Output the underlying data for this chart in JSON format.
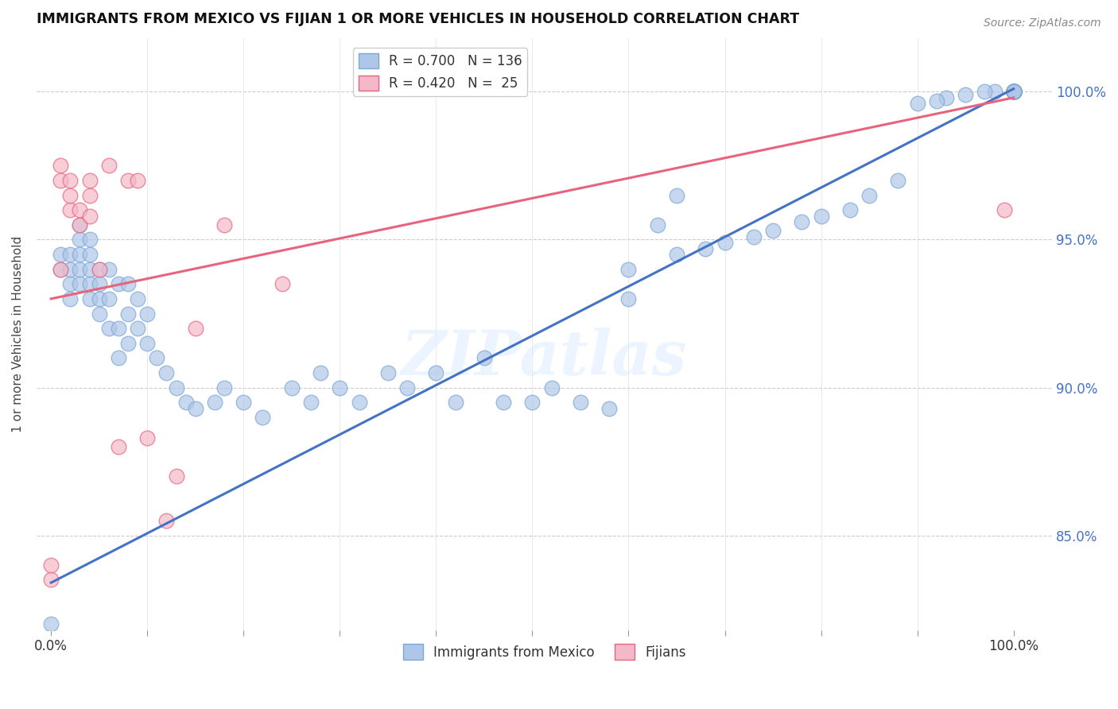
{
  "title": "IMMIGRANTS FROM MEXICO VS FIJIAN 1 OR MORE VEHICLES IN HOUSEHOLD CORRELATION CHART",
  "source": "Source: ZipAtlas.com",
  "ylabel": "1 or more Vehicles in Household",
  "ytick_values": [
    0.85,
    0.9,
    0.95,
    1.0
  ],
  "ytick_labels": [
    "85.0%",
    "90.0%",
    "95.0%",
    "100.0%"
  ],
  "legend_labels": [
    "Immigrants from Mexico",
    "Fijians"
  ],
  "blue_line_color": "#4472c4",
  "pink_line_color": "#e8637c",
  "blue_dot_facecolor": "#aec6e8",
  "blue_dot_edgecolor": "#7ca8d5",
  "pink_dot_facecolor": "#f4b8c8",
  "pink_dot_edgecolor": "#e8637c",
  "watermark": "ZIPatlas",
  "blue_scatter_x": [
    0.0,
    0.01,
    0.01,
    0.02,
    0.02,
    0.02,
    0.02,
    0.03,
    0.03,
    0.03,
    0.03,
    0.03,
    0.04,
    0.04,
    0.04,
    0.04,
    0.04,
    0.05,
    0.05,
    0.05,
    0.05,
    0.06,
    0.06,
    0.06,
    0.07,
    0.07,
    0.07,
    0.08,
    0.08,
    0.08,
    0.09,
    0.09,
    0.1,
    0.1,
    0.11,
    0.12,
    0.13,
    0.14,
    0.15,
    0.17,
    0.18,
    0.2,
    0.22,
    0.25,
    0.27,
    0.28,
    0.3,
    0.32,
    0.35,
    0.37,
    0.4,
    0.42,
    0.45,
    0.47,
    0.5,
    0.52,
    0.55,
    0.58,
    0.6,
    0.63,
    0.65,
    1.0,
    1.0,
    1.0,
    1.0,
    1.0,
    1.0,
    1.0,
    1.0,
    1.0,
    1.0,
    1.0,
    1.0,
    1.0,
    1.0,
    1.0,
    1.0,
    1.0,
    1.0,
    1.0,
    1.0,
    1.0,
    1.0,
    1.0,
    1.0,
    1.0,
    1.0,
    1.0,
    1.0,
    1.0,
    1.0,
    1.0,
    1.0,
    1.0,
    1.0,
    1.0,
    0.98,
    0.97,
    0.95,
    0.93,
    0.92,
    0.9,
    0.88,
    0.85,
    0.83,
    0.8,
    0.78,
    0.75,
    0.73,
    0.7,
    0.68,
    0.65,
    0.6
  ],
  "blue_scatter_y": [
    0.82,
    0.94,
    0.945,
    0.93,
    0.935,
    0.94,
    0.945,
    0.935,
    0.94,
    0.945,
    0.95,
    0.955,
    0.93,
    0.935,
    0.94,
    0.945,
    0.95,
    0.925,
    0.93,
    0.935,
    0.94,
    0.92,
    0.93,
    0.94,
    0.91,
    0.92,
    0.935,
    0.915,
    0.925,
    0.935,
    0.92,
    0.93,
    0.915,
    0.925,
    0.91,
    0.905,
    0.9,
    0.895,
    0.893,
    0.895,
    0.9,
    0.895,
    0.89,
    0.9,
    0.895,
    0.905,
    0.9,
    0.895,
    0.905,
    0.9,
    0.905,
    0.895,
    0.91,
    0.895,
    0.895,
    0.9,
    0.895,
    0.893,
    0.93,
    0.955,
    0.965,
    1.0,
    1.0,
    1.0,
    1.0,
    1.0,
    1.0,
    1.0,
    1.0,
    1.0,
    1.0,
    1.0,
    1.0,
    1.0,
    1.0,
    1.0,
    1.0,
    1.0,
    1.0,
    1.0,
    1.0,
    1.0,
    1.0,
    1.0,
    1.0,
    1.0,
    1.0,
    1.0,
    1.0,
    1.0,
    1.0,
    1.0,
    1.0,
    1.0,
    1.0,
    1.0,
    1.0,
    1.0,
    0.999,
    0.998,
    0.997,
    0.996,
    0.97,
    0.965,
    0.96,
    0.958,
    0.956,
    0.953,
    0.951,
    0.949,
    0.947,
    0.945,
    0.94
  ],
  "pink_scatter_x": [
    0.0,
    0.0,
    0.01,
    0.01,
    0.01,
    0.02,
    0.02,
    0.02,
    0.03,
    0.03,
    0.04,
    0.04,
    0.04,
    0.05,
    0.06,
    0.07,
    0.08,
    0.09,
    0.1,
    0.12,
    0.13,
    0.15,
    0.18,
    0.24,
    0.99
  ],
  "pink_scatter_y": [
    0.835,
    0.84,
    0.975,
    0.94,
    0.97,
    0.96,
    0.965,
    0.97,
    0.955,
    0.96,
    0.958,
    0.965,
    0.97,
    0.94,
    0.975,
    0.88,
    0.97,
    0.97,
    0.883,
    0.855,
    0.87,
    0.92,
    0.955,
    0.935,
    0.96
  ],
  "blue_line_y_start": 0.834,
  "blue_line_y_end": 1.001,
  "pink_line_y_start": 0.93,
  "pink_line_y_end": 0.998,
  "xmin": -0.015,
  "xmax": 1.04,
  "ymin": 0.818,
  "ymax": 1.018
}
